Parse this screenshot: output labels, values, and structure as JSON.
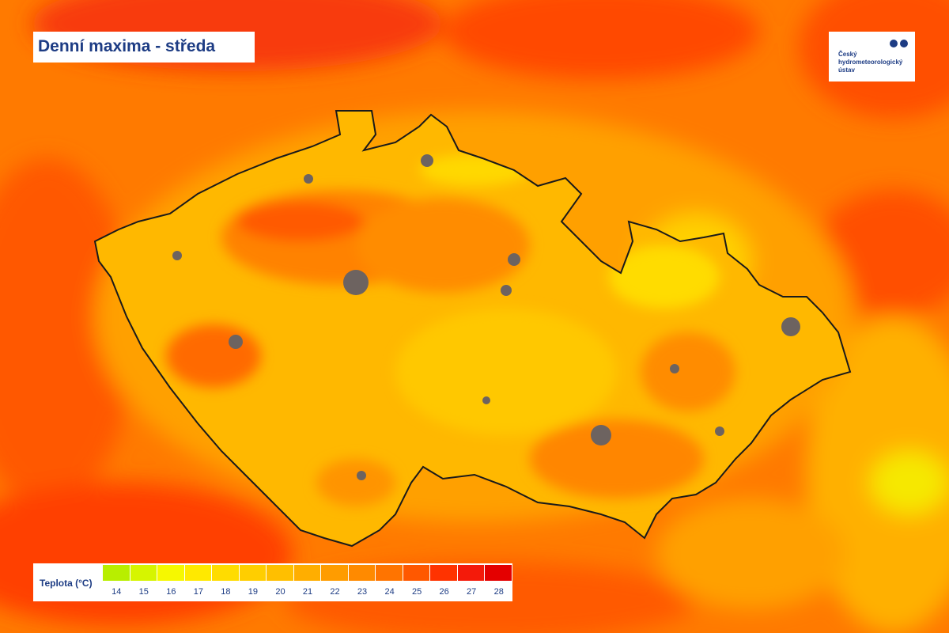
{
  "header": {
    "title": "Denní maxima - středa"
  },
  "logo": {
    "lines": [
      "Český",
      "hydrometeorologický",
      "ústav"
    ]
  },
  "legend": {
    "label": "Teplota (°C)",
    "steps": [
      {
        "value": 14,
        "color": "#b8ee00"
      },
      {
        "value": 15,
        "color": "#d6f500"
      },
      {
        "value": 16,
        "color": "#f6f800"
      },
      {
        "value": 17,
        "color": "#ffe900"
      },
      {
        "value": 18,
        "color": "#ffdc00"
      },
      {
        "value": 19,
        "color": "#ffce00"
      },
      {
        "value": 20,
        "color": "#ffbf00"
      },
      {
        "value": 21,
        "color": "#ffae00"
      },
      {
        "value": 22,
        "color": "#ff9c00"
      },
      {
        "value": 23,
        "color": "#ff8a00"
      },
      {
        "value": 24,
        "color": "#ff7400"
      },
      {
        "value": 25,
        "color": "#ff5800"
      },
      {
        "value": 26,
        "color": "#ff3300"
      },
      {
        "value": 27,
        "color": "#f41a0a"
      },
      {
        "value": 28,
        "color": "#e40000"
      }
    ]
  }
}
